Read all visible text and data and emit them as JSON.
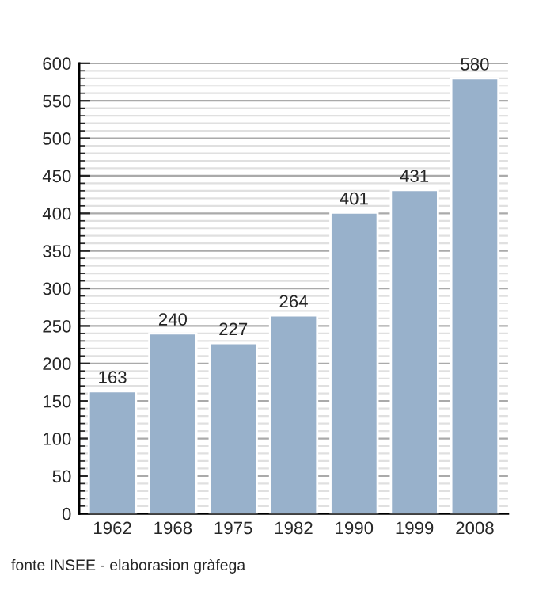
{
  "chart_data": {
    "type": "bar",
    "categories": [
      "1962",
      "1968",
      "1975",
      "1982",
      "1990",
      "1999",
      "2008"
    ],
    "values": [
      163,
      240,
      227,
      264,
      401,
      431,
      580
    ],
    "color": "#98b1cb",
    "ylim": [
      0,
      600
    ],
    "yticks": [
      0,
      50,
      100,
      150,
      200,
      250,
      300,
      350,
      400,
      450,
      500,
      550,
      600
    ],
    "grid": "y",
    "data_labels": true,
    "annotations": [
      "fonte INSEE - elaborasion gràfega"
    ]
  }
}
